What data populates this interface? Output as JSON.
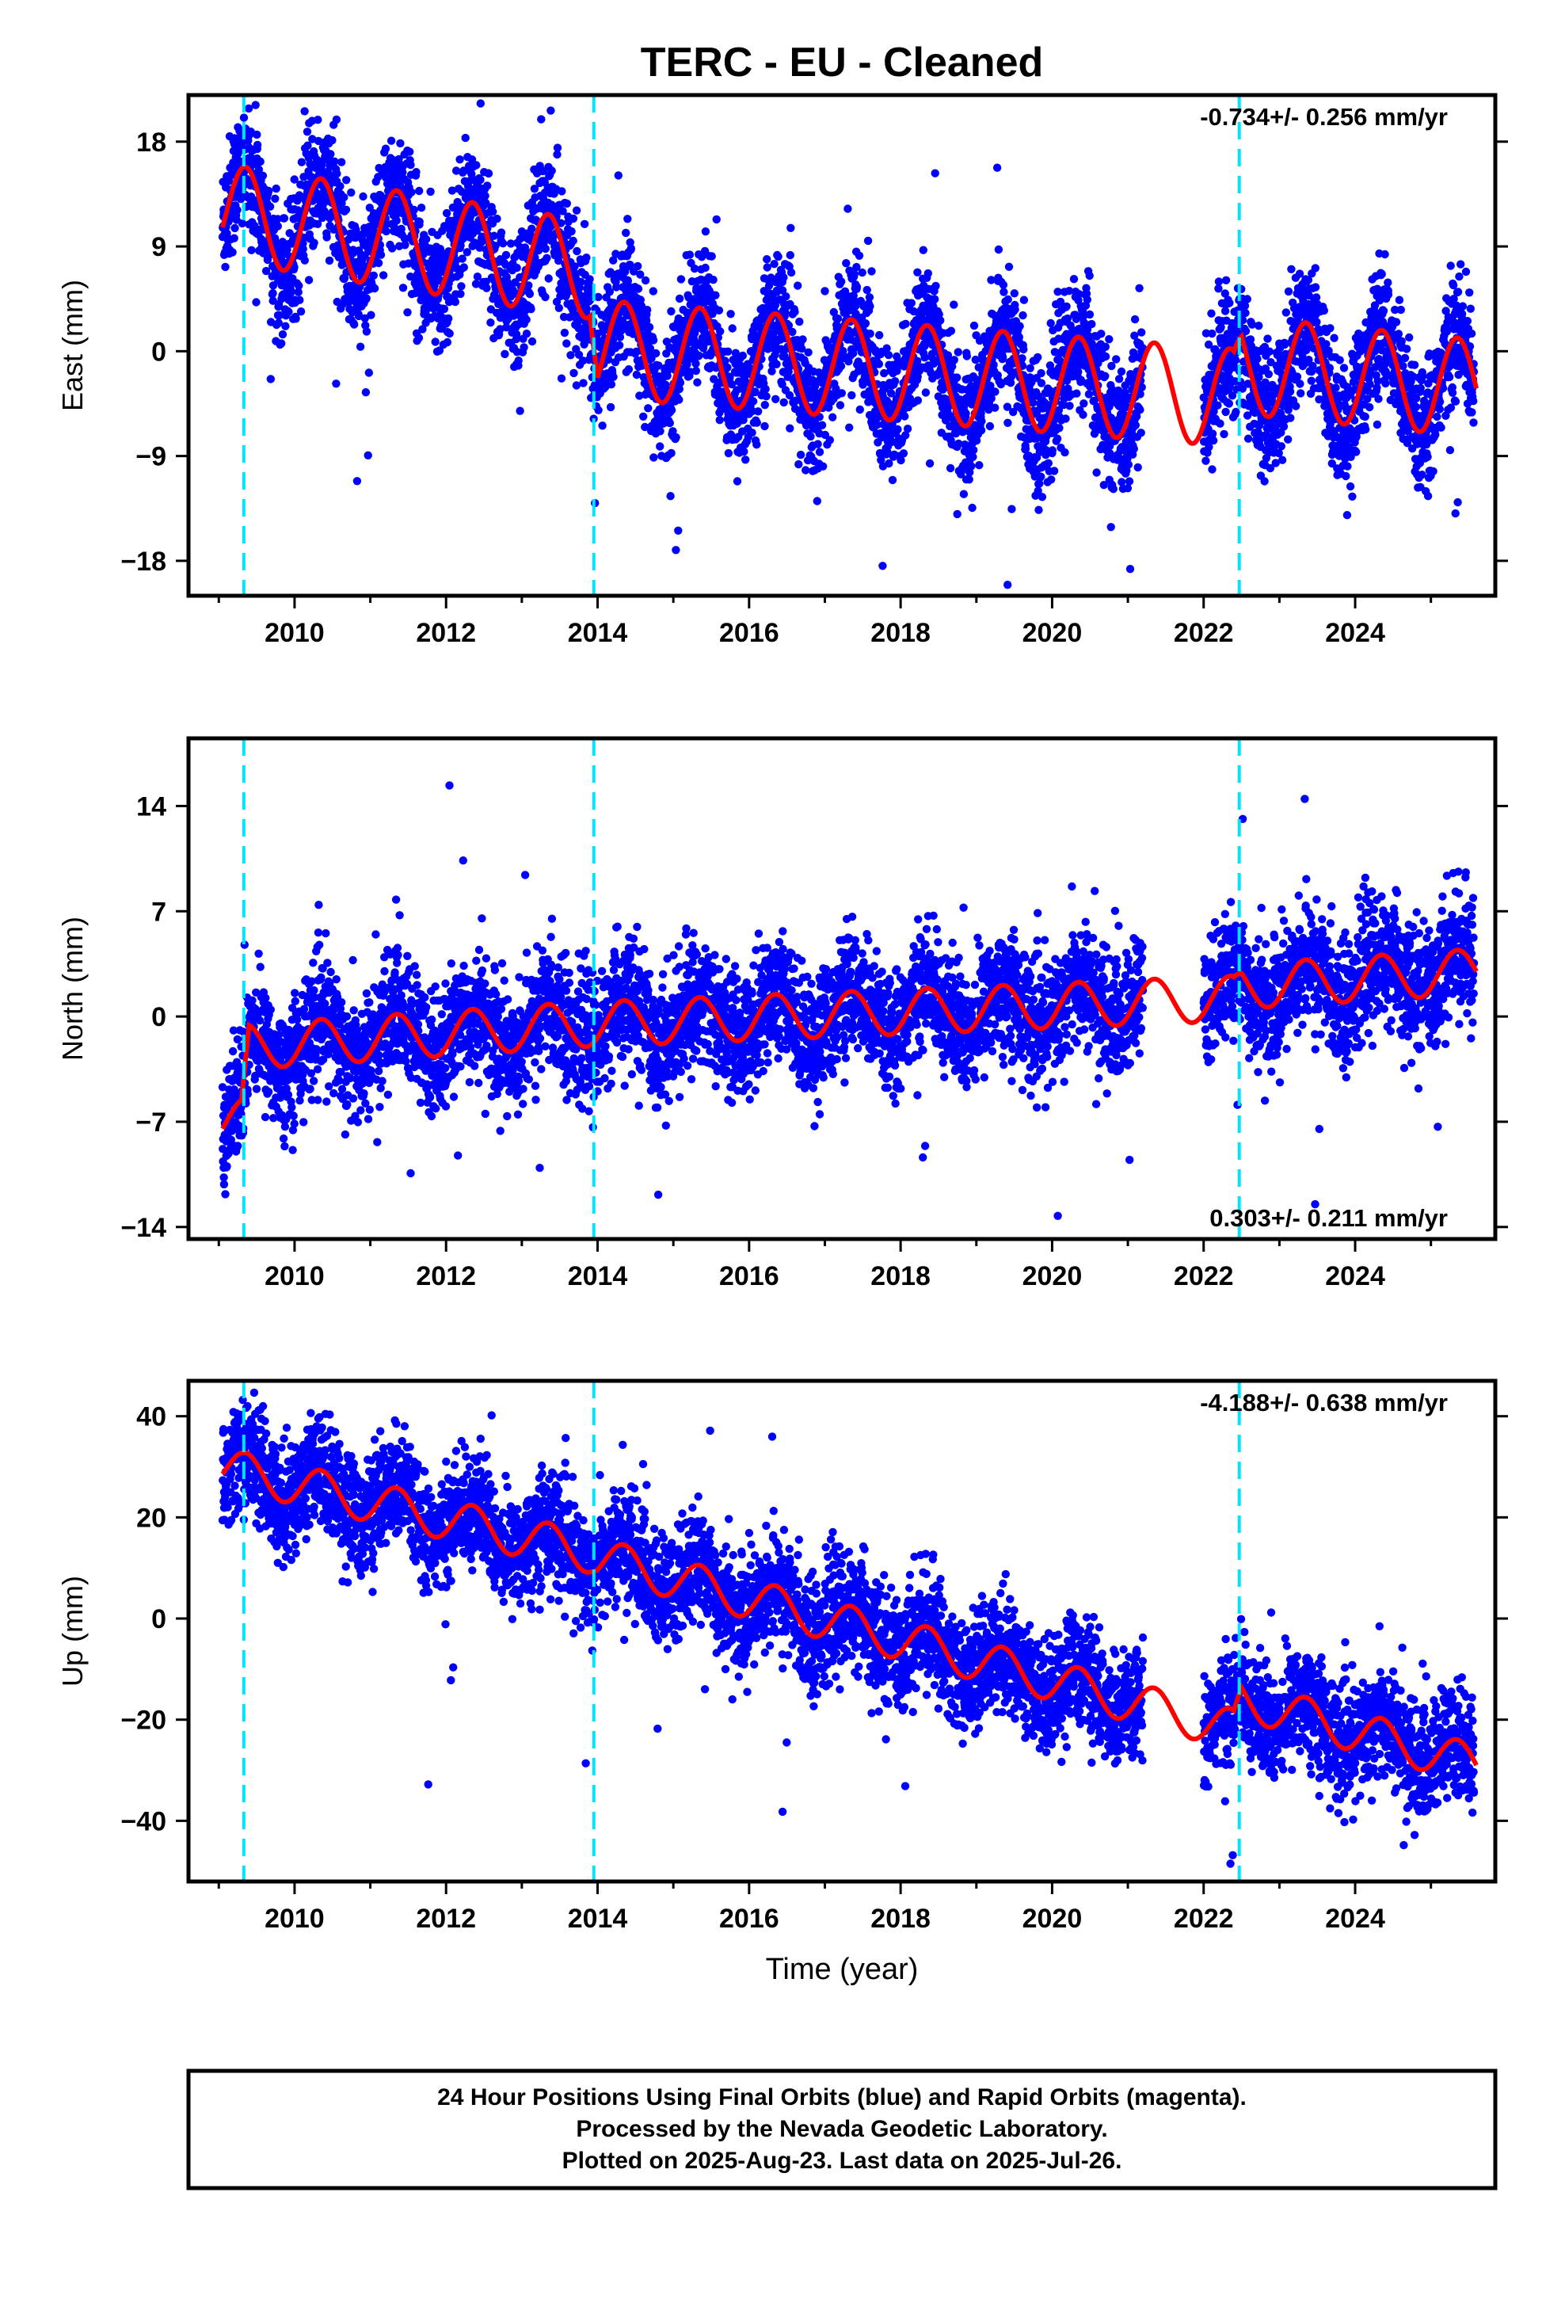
{
  "title": "TERC  - EU - Cleaned",
  "xlabel": "Time (year)",
  "footer": [
    "24 Hour Positions Using Final Orbits (blue) and Rapid Orbits (magenta).",
    "Processed by the Nevada Geodetic Laboratory.",
    "Plotted on 2025-Aug-23. Last data on 2025-Jul-26."
  ],
  "colors": {
    "points": "#0000ff",
    "model": "#ff0000",
    "events": "#00e5ff",
    "frame": "#000000"
  },
  "chart_data": [
    {
      "type": "scatter",
      "name": "east",
      "ylabel": "East (mm)",
      "rate_label": "-0.734+/- 0.256 mm/yr",
      "rate_position": "top-right",
      "xlim": [
        2008.6,
        2025.85
      ],
      "ylim": [
        -21,
        22
      ],
      "xticks": [
        2010,
        2012,
        2014,
        2016,
        2018,
        2020,
        2022,
        2024
      ],
      "yticks": [
        18,
        9,
        0,
        -9,
        -18
      ],
      "ytick_labels": [
        "18",
        "9",
        "0",
        "−9",
        "−18"
      ],
      "event_lines": [
        2009.33,
        2013.95,
        2022.47
      ],
      "data_gap": [
        2021.2,
        2022.0
      ],
      "trend": {
        "x": [
          2009.0,
          2013.9,
          2014.0,
          2022.4,
          2022.5,
          2025.6
        ],
        "y": [
          12.0,
          7.0,
          0.2,
          -4.0,
          -1.2,
          -3.2
        ]
      },
      "seasonal_amp": 4.2,
      "scatter_sd": 2.7,
      "model_values": [
        12.0,
        8.3,
        2.2,
        0.6,
        -1.6,
        -3.9,
        -1.5,
        -3.2
      ]
    },
    {
      "type": "scatter",
      "name": "north",
      "ylabel": "North (mm)",
      "rate_label": "0.303+/- 0.211 mm/yr",
      "rate_position": "bottom-right",
      "xlim": [
        2008.6,
        2025.85
      ],
      "ylim": [
        -14.8,
        18.5
      ],
      "xticks": [
        2010,
        2012,
        2014,
        2016,
        2018,
        2020,
        2022,
        2024
      ],
      "yticks": [
        14,
        7,
        0,
        -7,
        -14
      ],
      "ytick_labels": [
        "14",
        "7",
        "0",
        "−7",
        "−14"
      ],
      "event_lines": [
        2009.33,
        2013.95,
        2022.47
      ],
      "data_gap": [
        2021.2,
        2022.0
      ],
      "trend": {
        "x": [
          2009.0,
          2009.3,
          2009.4,
          2013.9,
          2014.0,
          2022.4,
          2022.5,
          2025.6
        ],
        "y": [
          -7.0,
          -7.0,
          -2.0,
          -0.5,
          -0.5,
          1.2,
          2.0,
          3.0
        ]
      },
      "seasonal_amp": 1.5,
      "scatter_sd": 2.0,
      "model_values": [
        -7.0,
        -1.5,
        -0.5,
        0.5,
        0.8,
        1.2,
        2.5,
        3.0
      ]
    },
    {
      "type": "scatter",
      "name": "up",
      "ylabel": "Up (mm)",
      "rate_label": "-4.188+/- 0.638 mm/yr",
      "rate_position": "top-right",
      "xlim": [
        2008.6,
        2025.85
      ],
      "ylim": [
        -52,
        47
      ],
      "xticks": [
        2010,
        2012,
        2014,
        2016,
        2018,
        2020,
        2022,
        2024
      ],
      "yticks": [
        40,
        20,
        0,
        -20,
        -40
      ],
      "ytick_labels": [
        "40",
        "20",
        "0",
        "−20",
        "−40"
      ],
      "event_lines": [
        2009.33,
        2013.95,
        2022.47
      ],
      "data_gap": [
        2021.2,
        2022.0
      ],
      "trend": {
        "x": [
          2009.0,
          2013.9,
          2014.0,
          2022.4,
          2022.5,
          2025.6
        ],
        "y": [
          30.0,
          13.0,
          12.0,
          -22.0,
          -16.0,
          -29.0
        ]
      },
      "seasonal_amp": 4.0,
      "scatter_sd": 5.5,
      "model_values": [
        30.0,
        13.0,
        12.0,
        -1.0,
        -10.0,
        -22.0,
        -16.0,
        -29.0
      ]
    }
  ]
}
